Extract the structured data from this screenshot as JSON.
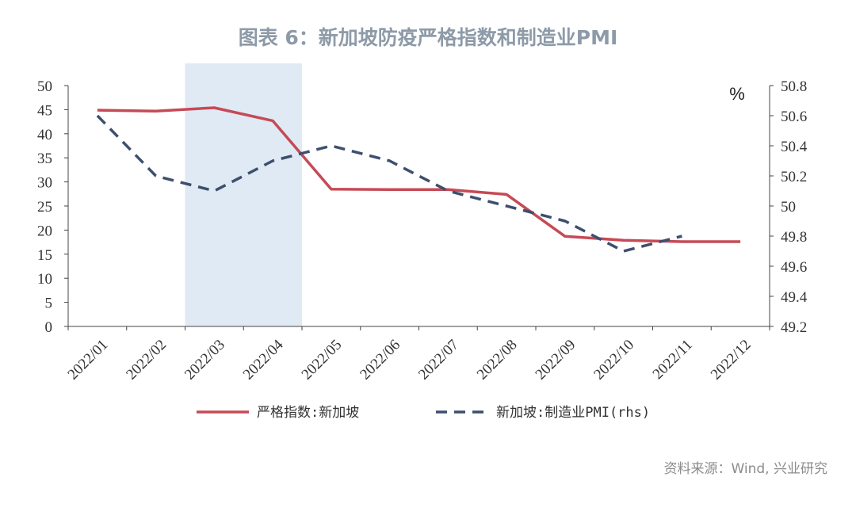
{
  "title": "图表 6：新加坡防疫严格指数和制造业PMI",
  "source": "资料来源：Wind, 兴业研究",
  "colors": {
    "series_1": "#c64a55",
    "series_2": "#3e4f6e",
    "shade": "#dfeaf5",
    "title": "#8d9aa8"
  },
  "chart_data": {
    "type": "line",
    "categories": [
      "2022/01",
      "2022/02",
      "2022/03",
      "2022/04",
      "2022/05",
      "2022/06",
      "2022/07",
      "2022/08",
      "2022/09",
      "2022/10",
      "2022/11",
      "2022/12"
    ],
    "series": [
      {
        "name": "严格指数:新加坡",
        "axis": "left",
        "style": "solid",
        "values": [
          44.9,
          44.7,
          45.4,
          42.7,
          28.5,
          28.4,
          28.4,
          27.4,
          18.7,
          17.9,
          17.6,
          17.6
        ]
      },
      {
        "name": "新加坡:制造业PMI(rhs)",
        "axis": "right",
        "style": "dashed",
        "values": [
          50.6,
          50.2,
          50.1,
          50.3,
          50.4,
          50.3,
          50.1,
          50.0,
          49.9,
          49.7,
          49.8,
          null
        ]
      }
    ],
    "y_left": {
      "min": 0,
      "max": 50,
      "ticks": [
        0,
        5,
        10,
        15,
        20,
        25,
        30,
        35,
        40,
        45,
        50
      ]
    },
    "y_right": {
      "min": 49.2,
      "max": 50.8,
      "unit": "%",
      "ticks": [
        "49.2",
        "49.4",
        "49.6",
        "49.8",
        "50",
        "50.2",
        "50.4",
        "50.6",
        "50.8"
      ]
    },
    "shaded_range": [
      "2022/03",
      "2022/05"
    ],
    "legend_position": "bottom",
    "grid": false
  }
}
